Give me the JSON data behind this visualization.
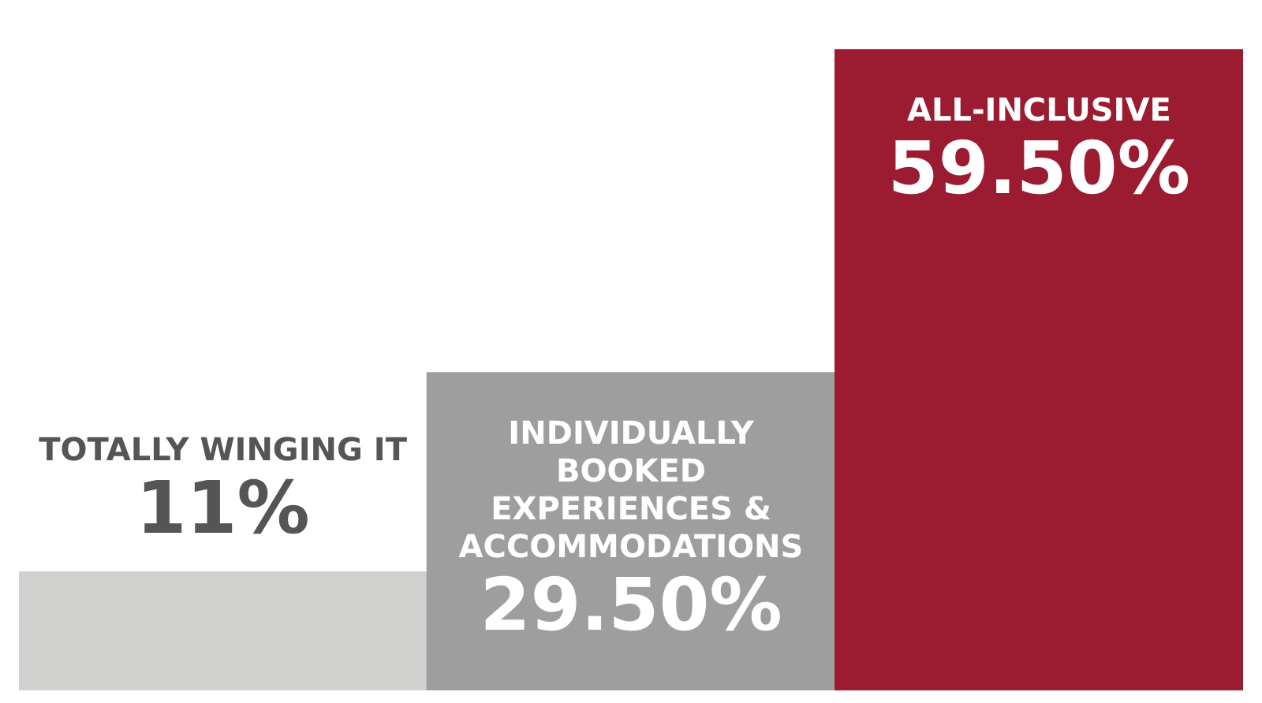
{
  "chart_data": {
    "type": "bar",
    "categories": [
      "TOTALLY WINGING IT",
      "INDIVIDUALLY BOOKED EXPERIENCES & ACCOMMODATIONS",
      "ALL-INCLUSIVE"
    ],
    "values": [
      11,
      29.5,
      59.5
    ],
    "value_labels": [
      "11%",
      "29.50%",
      "59.50%"
    ],
    "colors": [
      "#d0d0ce",
      "#9e9e9e",
      "#9b1b30"
    ],
    "legend": false
  }
}
